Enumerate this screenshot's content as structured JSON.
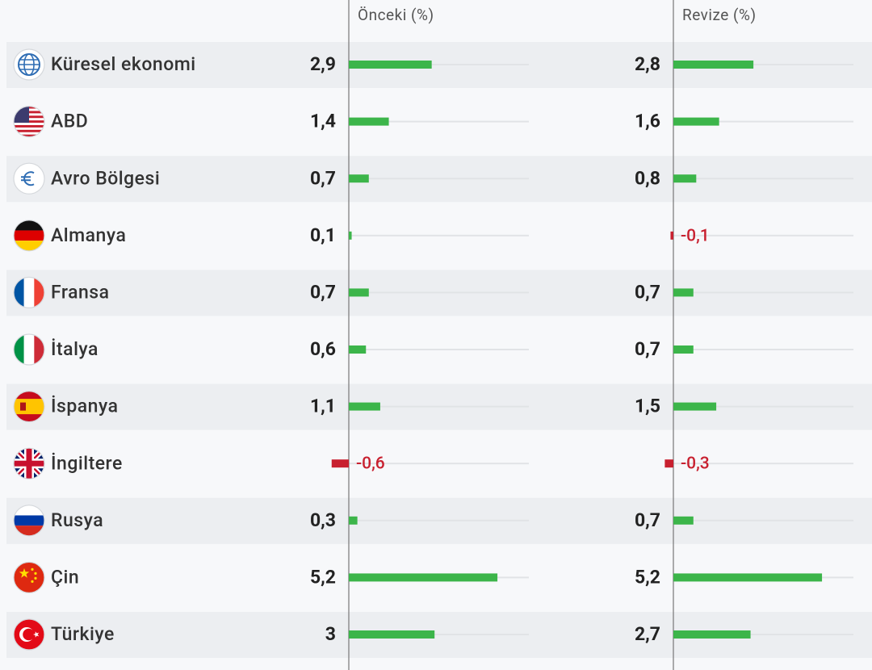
{
  "chart_data": {
    "type": "bar",
    "orientation": "horizontal",
    "categories": [
      "Küresel ekonomi",
      "ABD",
      "Avro Bölgesi",
      "Almanya",
      "Fransa",
      "İtalya",
      "İspanya",
      "İngiltere",
      "Rusya",
      "Çin",
      "Türkiye"
    ],
    "series": [
      {
        "name": "Önceki (%)",
        "color": "#3cb54a",
        "negative_color": "#c8202f",
        "values": [
          2.9,
          1.4,
          0.7,
          0.1,
          0.7,
          0.6,
          1.1,
          -0.6,
          0.3,
          5.2,
          3
        ],
        "value_labels": [
          "2,9",
          "1,4",
          "0,7",
          "0,1",
          "0,7",
          "0,6",
          "1,1",
          "-0,6",
          "0,3",
          "5,2",
          "3"
        ]
      },
      {
        "name": "Revize (%)",
        "color": "#3cb54a",
        "negative_color": "#c8202f",
        "values": [
          2.8,
          1.6,
          0.8,
          -0.1,
          0.7,
          0.7,
          1.5,
          -0.3,
          0.7,
          5.2,
          2.7
        ],
        "value_labels": [
          "2,8",
          "1,6",
          "0,8",
          "-0,1",
          "0,7",
          "0,7",
          "1,5",
          "-0,3",
          "0,7",
          "5,2",
          "2,7"
        ]
      }
    ],
    "xlim": [
      -0.6,
      6.3
    ]
  }
}
